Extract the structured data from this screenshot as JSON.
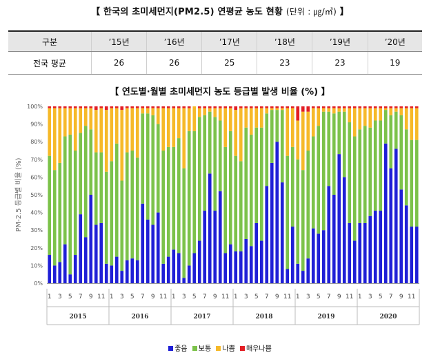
{
  "table_title": {
    "text": "【 한국의 초미세먼지(PM2.5) 연평균 농도 현황 ",
    "unit": "(단위 : ㎍/㎥)",
    "close": " 】"
  },
  "table": {
    "headers": [
      "구분",
      "’15년",
      "’16년",
      "’17년",
      "’18년",
      "’19년",
      "’20년"
    ],
    "row_label": "전국 평균",
    "values": [
      "26",
      "26",
      "25",
      "23",
      "23",
      "19"
    ]
  },
  "chart_data": {
    "type": "bar",
    "stacked": true,
    "title": "【 연도별·월별 초미세먼지 농도 등급별 발생 비율 (%) 】",
    "ylabel": "PM-2.5 등급별 비율 (%)",
    "xlabel": "",
    "ylim": [
      0,
      100
    ],
    "yticks": [
      "0%",
      "10%",
      "20%",
      "30%",
      "40%",
      "50%",
      "60%",
      "70%",
      "80%",
      "90%",
      "100%"
    ],
    "grid": false,
    "legend_position": "bottom",
    "years": [
      "2015",
      "2016",
      "2017",
      "2018",
      "2019",
      "2020"
    ],
    "month_labels": [
      "1",
      "3",
      "5",
      "7",
      "9",
      "11"
    ],
    "series": [
      {
        "name": "좋음",
        "color": "#1f1fd6",
        "values": [
          16,
          10,
          12,
          22,
          5,
          16,
          39,
          26,
          50,
          33,
          34,
          11,
          10,
          15,
          7,
          13,
          14,
          13,
          45,
          36,
          33,
          40,
          11,
          15,
          19,
          17,
          3,
          10,
          17,
          24,
          41,
          62,
          41,
          52,
          17,
          22,
          18,
          18,
          25,
          21,
          34,
          24,
          55,
          68,
          80,
          57,
          8,
          32,
          11,
          7,
          14,
          31,
          28,
          30,
          55,
          50,
          73,
          60,
          34,
          24,
          34,
          34,
          38,
          41,
          41,
          79,
          65,
          76,
          53,
          44,
          32,
          32
        ]
      },
      {
        "name": "보통",
        "color": "#7cc24a",
        "values": [
          56,
          54,
          56,
          61,
          79,
          59,
          46,
          63,
          37,
          41,
          40,
          52,
          59,
          64,
          51,
          61,
          61,
          58,
          51,
          60,
          62,
          50,
          64,
          62,
          58,
          65,
          62,
          76,
          69,
          70,
          54,
          35,
          53,
          40,
          60,
          64,
          54,
          51,
          63,
          63,
          54,
          64,
          41,
          30,
          18,
          41,
          64,
          45,
          59,
          57,
          61,
          52,
          61,
          67,
          42,
          46,
          24,
          37,
          57,
          59,
          53,
          55,
          50,
          51,
          51,
          19,
          30,
          21,
          42,
          43,
          49,
          49
        ]
      },
      {
        "name": "나쁨",
        "color": "#f6b929",
        "values": [
          27,
          35,
          31,
          16,
          15,
          24,
          14,
          10,
          12,
          24,
          25,
          35,
          30,
          20,
          40,
          25,
          24,
          28,
          3,
          3,
          4,
          9,
          24,
          22,
          22,
          17,
          34,
          13,
          14,
          5,
          4,
          2,
          5,
          7,
          22,
          13,
          26,
          30,
          11,
          15,
          11,
          11,
          3,
          1,
          1,
          1,
          27,
          22,
          22,
          33,
          22,
          16,
          10,
          2,
          2,
          3,
          2,
          2,
          8,
          16,
          12,
          10,
          11,
          7,
          7,
          1,
          4,
          2,
          4,
          12,
          18,
          18
        ]
      },
      {
        "name": "매우나쁨",
        "color": "#e31e24",
        "values": [
          1,
          1,
          1,
          1,
          1,
          1,
          1,
          1,
          1,
          2,
          1,
          2,
          1,
          1,
          2,
          1,
          1,
          1,
          1,
          1,
          1,
          1,
          1,
          1,
          1,
          1,
          1,
          1,
          0,
          1,
          1,
          1,
          1,
          1,
          1,
          1,
          2,
          1,
          1,
          1,
          1,
          1,
          1,
          1,
          1,
          1,
          1,
          1,
          8,
          3,
          3,
          1,
          1,
          1,
          1,
          1,
          1,
          1,
          1,
          1,
          1,
          1,
          1,
          1,
          1,
          1,
          1,
          1,
          1,
          1,
          1,
          1
        ]
      }
    ]
  }
}
